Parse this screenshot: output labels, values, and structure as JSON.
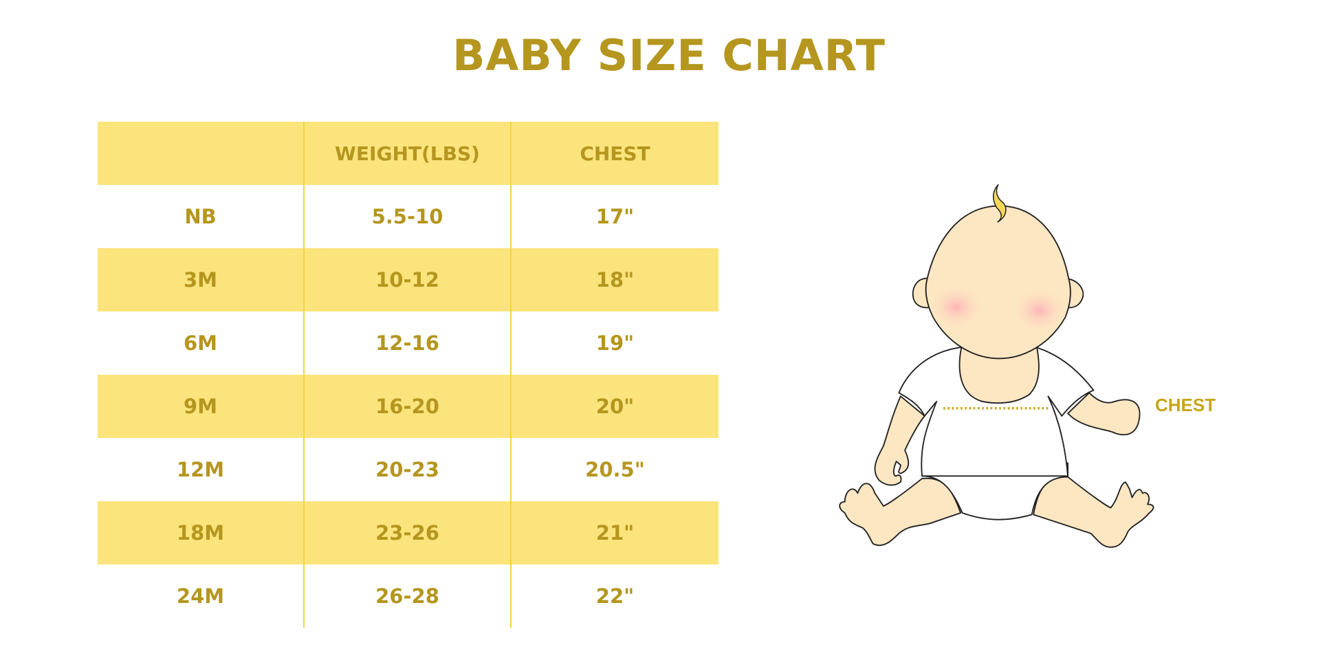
{
  "title": "BABY SIZE CHART",
  "table": {
    "headers": [
      "",
      "WEIGHT(LBS)",
      "CHEST"
    ],
    "rows": [
      [
        "NB",
        "5.5-10",
        "17\""
      ],
      [
        "3M",
        "10-12",
        "18\""
      ],
      [
        "6M",
        "12-16",
        "19\""
      ],
      [
        "9M",
        "16-20",
        "20\""
      ],
      [
        "12M",
        "20-23",
        "20.5\""
      ],
      [
        "18M",
        "23-26",
        "21\""
      ],
      [
        "24M",
        "26-28",
        "22\""
      ]
    ]
  },
  "illustration": {
    "chest_label": "CHEST"
  },
  "colors": {
    "text": "#b5961e",
    "band": "#fbe47c",
    "divider": "#f6d43e",
    "skin": "#fde6c2"
  }
}
